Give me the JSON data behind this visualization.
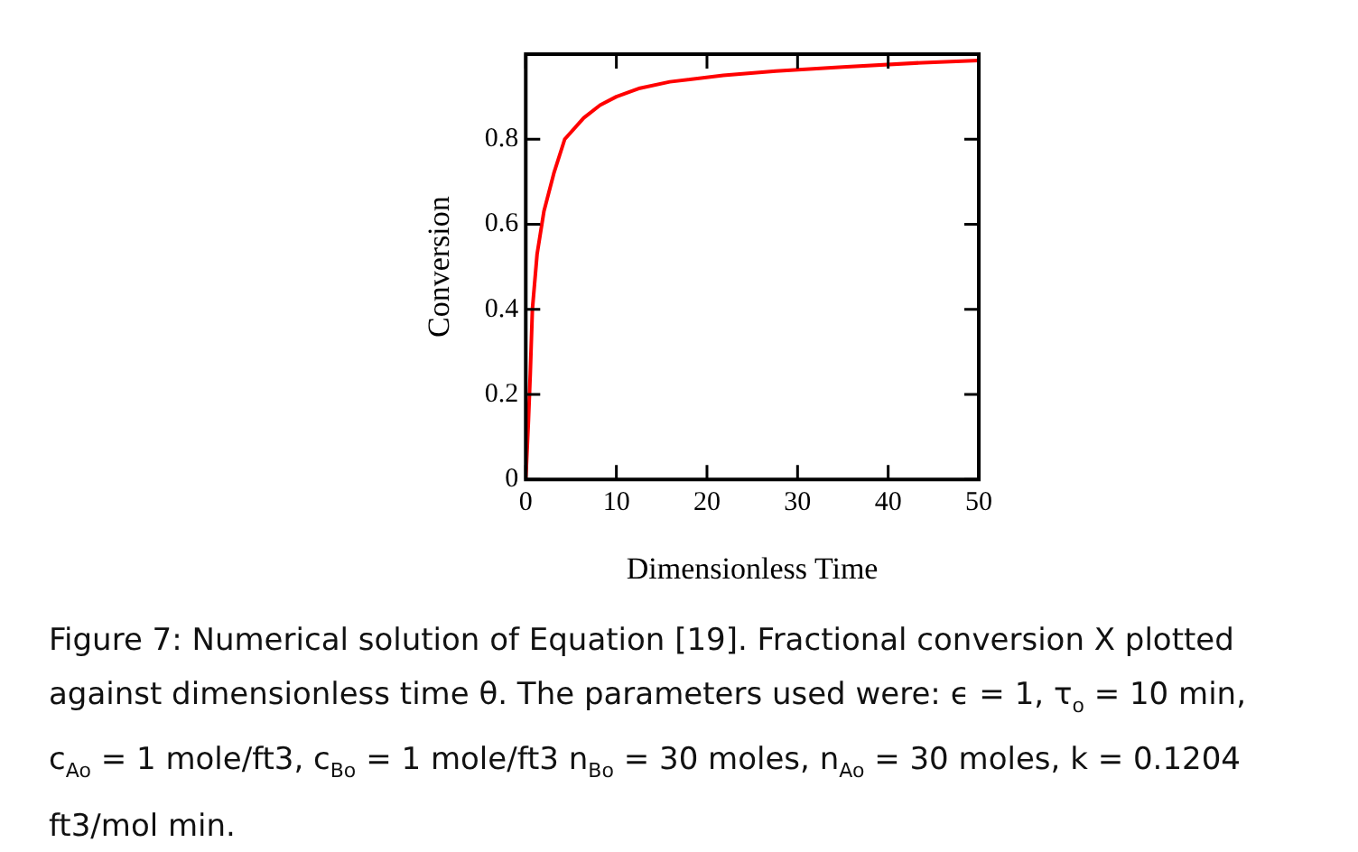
{
  "chart_data": {
    "type": "line",
    "xlabel": "Dimensionless Time",
    "ylabel": "Conversion",
    "x": [
      0,
      0.3,
      0.5,
      0.73,
      1.25,
      2.0,
      3.1,
      4.3,
      6.4,
      8.2,
      10,
      12.6,
      15.9,
      21.8,
      27.6,
      35,
      43.8,
      50
    ],
    "series": [
      {
        "color": "#ff0000",
        "values": [
          0,
          0.14,
          0.25,
          0.4,
          0.53,
          0.63,
          0.72,
          0.8,
          0.85,
          0.88,
          0.9,
          0.92,
          0.935,
          0.95,
          0.96,
          0.97,
          0.98,
          0.985
        ]
      }
    ],
    "xlim": [
      0,
      50
    ],
    "xticks": [
      0,
      10,
      20,
      30,
      40,
      50
    ],
    "ylim": [
      0,
      1
    ],
    "yticks": [
      0,
      0.2,
      0.4,
      0.6,
      0.8
    ],
    "grid": false,
    "legend": false,
    "marker": "none",
    "line_style": "solid",
    "annotations": [
      "Figure 7:   Numerical solution of Equation [19]. Fractional conversion X plotted against dimensionless time θ.  The parameters used were: ϵ = 1, τ$_{o}$ = 10 min, c$_{Ao}$ = 1 mole/ft3, c$_{Bo}$ = 1 mole/ft3 n$_{Bo}$ = 30 moles, n$_{Ao}$ = 30 moles, k = 0.1204 ft3/mol min."
    ]
  }
}
